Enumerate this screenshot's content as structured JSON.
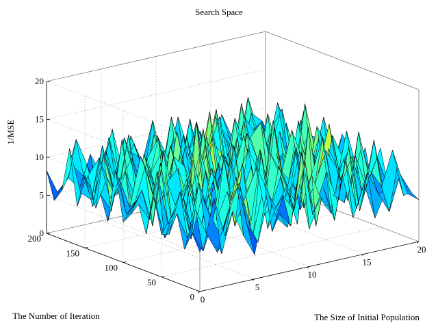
{
  "chart_data": {
    "type": "surface",
    "title": "Search Space",
    "zlabel": "1/MSE",
    "xlabel": "The Size of Initial Population",
    "ylabel": "The Number of Iteration",
    "x_range": [
      0,
      20
    ],
    "y_range": [
      0,
      200
    ],
    "z_range": [
      0,
      20
    ],
    "x_ticks": [
      "0",
      "5",
      "10",
      "15",
      "20"
    ],
    "y_ticks": [
      "0",
      "50",
      "100",
      "150",
      "200"
    ],
    "z_ticks": [
      "0",
      "5",
      "10",
      "15",
      "20"
    ],
    "grid": true,
    "colormap": "jet",
    "grid_resolution": [
      21,
      21
    ],
    "z_values": [
      [
        5.2,
        8.1,
        4.3,
        9.6,
        6.0,
        3.2,
        10.5,
        7.4,
        5.8,
        12.1,
        4.9,
        8.6,
        6.3,
        11.0,
        5.1,
        9.2,
        4.4,
        7.7,
        10.3,
        6.6,
        5.5
      ],
      [
        7.3,
        4.6,
        11.2,
        5.9,
        13.4,
        6.8,
        4.1,
        9.9,
        7.2,
        5.3,
        14.6,
        6.1,
        9.4,
        4.7,
        12.5,
        5.6,
        10.1,
        6.9,
        4.2,
        8.8,
        6.1
      ],
      [
        4.8,
        9.7,
        6.2,
        3.4,
        8.3,
        11.9,
        5.7,
        15.2,
        4.5,
        8.9,
        6.6,
        12.8,
        3.9,
        10.7,
        6.4,
        13.3,
        4.6,
        9.5,
        7.1,
        11.6,
        5.3
      ],
      [
        9.1,
        5.4,
        12.6,
        7.8,
        4.9,
        9.2,
        13.7,
        4.3,
        10.4,
        6.8,
        9.3,
        4.1,
        16.5,
        7.3,
        5.2,
        8.1,
        11.4,
        5.8,
        12.9,
        4.7,
        8.2
      ],
      [
        6.0,
        11.3,
        4.7,
        10.1,
        6.5,
        14.4,
        5.1,
        8.8,
        12.2,
        3.8,
        11.6,
        7.9,
        5.3,
        9.6,
        14.1,
        6.2,
        4.9,
        10.8,
        6.3,
        9.9,
        5.7
      ],
      [
        5.6,
        7.9,
        9.8,
        4.2,
        12.7,
        5.8,
        9.3,
        6.1,
        4.6,
        13.8,
        5.9,
        10.2,
        8.4,
        4.8,
        7.6,
        11.7,
        9.1,
        4.5,
        13.2,
        6.8,
        10.4
      ],
      [
        10.2,
        4.4,
        6.9,
        11.5,
        5.3,
        8.7,
        4.8,
        12.9,
        7.5,
        9.1,
        4.3,
        15.8,
        6.2,
        12.4,
        5.0,
        8.3,
        14.5,
        7.2,
        5.6,
        10.6,
        4.8
      ],
      [
        4.9,
        12.8,
        5.5,
        8.3,
        10.9,
        4.1,
        11.6,
        5.9,
        13.9,
        5.2,
        10.7,
        6.8,
        9.9,
        4.4,
        11.2,
        6.5,
        4.7,
        12.3,
        8.9,
        5.1,
        9.7
      ],
      [
        8.4,
        6.1,
        13.2,
        5.7,
        7.4,
        12.6,
        6.3,
        9.7,
        4.4,
        8.6,
        12.4,
        4.9,
        11.3,
        7.8,
        13.6,
        5.4,
        9.8,
        6.1,
        4.3,
        11.8,
        6.2
      ],
      [
        6.7,
        9.6,
        4.5,
        14.1,
        6.8,
        5.2,
        16.9,
        4.6,
        10.8,
        6.9,
        5.6,
        9.4,
        4.7,
        14.8,
        6.1,
        10.2,
        5.5,
        12.7,
        9.5,
        6.4,
        8.9
      ],
      [
        5.3,
        7.2,
        11.9,
        6.4,
        9.2,
        10.8,
        5.7,
        12.4,
        7.1,
        11.3,
        8.2,
        13.1,
        6.6,
        5.9,
        9.7,
        4.8,
        13.4,
        6.9,
        11.1,
        4.6,
        10.3
      ],
      [
        11.8,
        5.6,
        7.3,
        9.9,
        4.3,
        13.3,
        8.1,
        5.2,
        14.6,
        4.9,
        10.3,
        5.6,
        12.7,
        8.8,
        4.5,
        11.9,
        6.2,
        9.3,
        5.7,
        12.5,
        6.7
      ],
      [
        4.6,
        10.1,
        5.8,
        12.2,
        8.6,
        5.9,
        11.2,
        9.6,
        5.4,
        12.8,
        6.3,
        9.9,
        4.8,
        11.4,
        13.1,
        6.7,
        8.4,
        4.9,
        14.2,
        7.3,
        5.9
      ],
      [
        7.9,
        5.3,
        14.4,
        4.8,
        11.8,
        7.1,
        4.6,
        13.8,
        6.6,
        8.2,
        15.4,
        5.2,
        10.6,
        6.3,
        4.9,
        10.6,
        5.3,
        11.6,
        6.1,
        9.4,
        8.6
      ],
      [
        5.8,
        12.4,
        6.7,
        9.3,
        5.5,
        10.5,
        12.9,
        5.1,
        9.8,
        5.7,
        7.6,
        11.7,
        6.1,
        13.2,
        8.7,
        5.6,
        12.8,
        7.3,
        4.7,
        10.9,
        5.2
      ],
      [
        9.6,
        4.9,
        8.6,
        6.1,
        13.6,
        4.7,
        7.8,
        10.3,
        4.5,
        11.9,
        5.9,
        8.1,
        14.3,
        4.8,
        10.5,
        7.4,
        5.8,
        9.9,
        12.4,
        5.6,
        11.5
      ],
      [
        5.1,
        8.8,
        10.8,
        5.2,
        7.3,
        9.8,
        5.5,
        12.2,
        8.7,
        6.4,
        10.9,
        5.4,
        7.2,
        12.6,
        5.3,
        13.7,
        6.9,
        5.1,
        8.6,
        6.8,
        4.9
      ],
      [
        12.3,
        6.2,
        4.9,
        11.7,
        5.8,
        12.1,
        6.9,
        4.8,
        11.4,
        8.1,
        4.7,
        12.6,
        5.9,
        9.1,
        6.8,
        4.9,
        11.2,
        8.6,
        5.4,
        12.1,
        7.8
      ],
      [
        6.4,
        9.3,
        7.6,
        5.1,
        10.4,
        5.3,
        9.7,
        8.6,
        5.6,
        4.9,
        12.8,
        7.1,
        9.8,
        5.3,
        11.6,
        8.2,
        5.4,
        13.1,
        7.9,
        4.8,
        9.1
      ],
      [
        4.7,
        6.8,
        12.1,
        8.4,
        4.6,
        11.4,
        5.2,
        10.9,
        6.8,
        12.3,
        5.8,
        9.6,
        4.9,
        10.8,
        5.1,
        9.6,
        7.7,
        4.6,
        10.3,
        8.9,
        5.6
      ],
      [
        8.3,
        5.1,
        6.6,
        4.9,
        9.1,
        6.2,
        11.8,
        5.7,
        9.2,
        5.5,
        8.4,
        5.2,
        11.4,
        6.6,
        8.9,
        5.3,
        10.4,
        6.9,
        5.2,
        7.6,
        4.4
      ]
    ]
  }
}
